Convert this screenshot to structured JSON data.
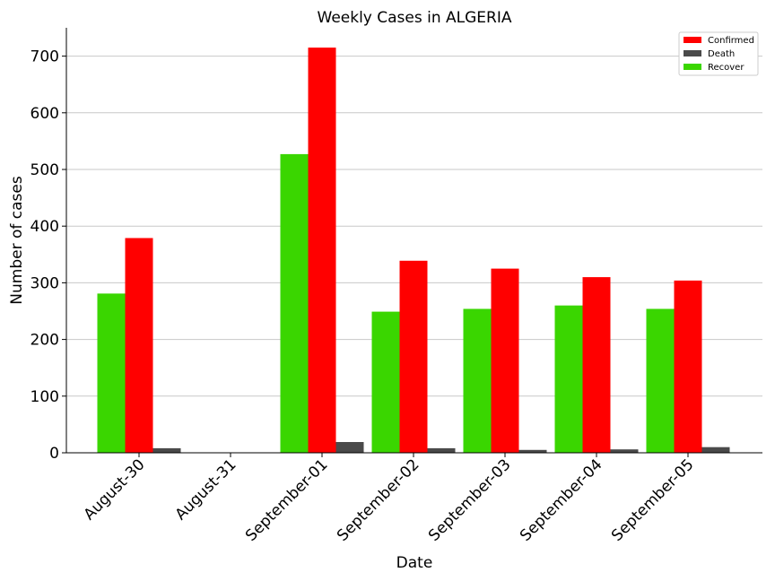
{
  "chart_data": {
    "type": "bar",
    "title": "Weekly Cases in ALGERIA",
    "xlabel": "Date",
    "ylabel": "Number of cases",
    "categories": [
      "August-30",
      "August-31",
      "September-01",
      "September-02",
      "September-03",
      "September-04",
      "September-05"
    ],
    "series": [
      {
        "name": "Recover",
        "color": "#3ad600",
        "values": [
          281,
          0,
          527,
          249,
          254,
          260,
          254
        ]
      },
      {
        "name": "Confirmed",
        "color": "#ff0000",
        "values": [
          379,
          0,
          715,
          339,
          325,
          310,
          304
        ]
      },
      {
        "name": "Death",
        "color": "#4a4a4a",
        "values": [
          8,
          0,
          19,
          8,
          5,
          6,
          10
        ]
      }
    ],
    "legend_order": [
      "Confirmed",
      "Death",
      "Recover"
    ],
    "ylim": [
      0,
      750
    ],
    "yticks": [
      0,
      100,
      200,
      300,
      400,
      500,
      600,
      700
    ],
    "grid": "horizontal",
    "legend_position": "top-right"
  }
}
